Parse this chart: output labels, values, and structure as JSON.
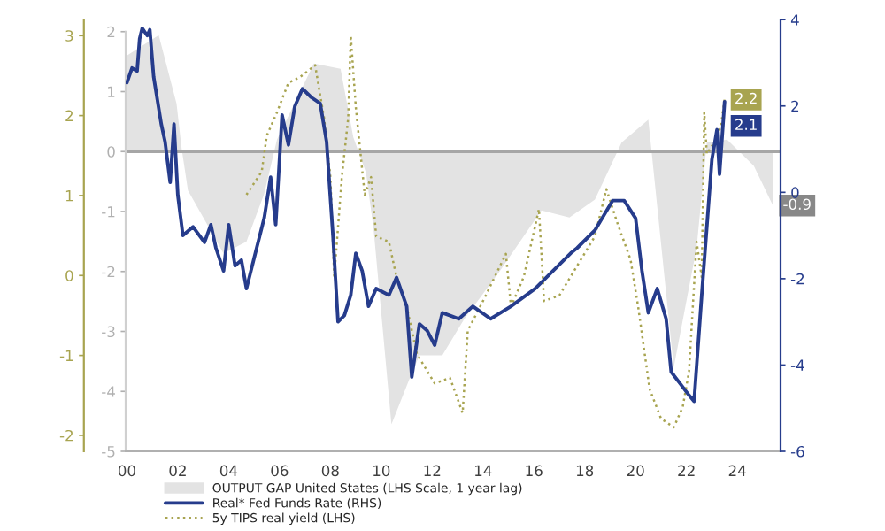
{
  "chart_data": {
    "type": "line",
    "xlim": [
      1999.95,
      2025.7
    ],
    "xticks": [
      {
        "value": 2000,
        "label": "00"
      },
      {
        "value": 2002,
        "label": "02"
      },
      {
        "value": 2004,
        "label": "04"
      },
      {
        "value": 2006,
        "label": "06"
      },
      {
        "value": 2008,
        "label": "08"
      },
      {
        "value": 2010,
        "label": "10"
      },
      {
        "value": 2012,
        "label": "12"
      },
      {
        "value": 2014,
        "label": "14"
      },
      {
        "value": 2016,
        "label": "16"
      },
      {
        "value": 2018,
        "label": "18"
      },
      {
        "value": 2020,
        "label": "20"
      },
      {
        "value": 2022,
        "label": "22"
      },
      {
        "value": 2024,
        "label": "24"
      }
    ],
    "ylim": [
      -5,
      2.2
    ],
    "yticks": [
      -5,
      -4,
      -3,
      -2,
      -1,
      0,
      1,
      2
    ],
    "y2lim": [
      -6,
      4
    ],
    "y2ticks": [
      -6,
      -4,
      -2,
      0,
      2,
      4
    ],
    "y3lim": [
      -2.2,
      3.2
    ],
    "y3ticks": [
      -2,
      -1,
      0,
      1,
      2,
      3
    ],
    "ref_lines": [
      {
        "axis": "y",
        "value": 0,
        "color": "#a6a6a6"
      }
    ],
    "legend": "bottom",
    "grid": false,
    "series": [
      {
        "name": "OUTPUT GAP United States (LHS Scale, 1 year lag)",
        "type": "area",
        "color": "#e3e3e3",
        "x": [
          2000.0,
          2001.25,
          2001.95,
          2002.15,
          2002.4,
          2003.0,
          2003.8,
          2004.7,
          2005.4,
          2005.9,
          2007.35,
          2008.4,
          2008.9,
          2009.4,
          2009.7,
          2010.4,
          2011.1,
          2011.5,
          2012.4,
          2013.25,
          2014.65,
          2016.3,
          2017.4,
          2018.4,
          2019.45,
          2020.5,
          2021.5,
          2022.4,
          2022.8,
          2023.6,
          2024.65,
          2025.4
        ],
        "values": [
          1.6,
          1.94,
          0.8,
          0.05,
          -0.65,
          -1.1,
          -1.7,
          -1.5,
          -0.7,
          0.2,
          1.47,
          1.38,
          0.24,
          -0.35,
          -1.3,
          -4.55,
          -3.8,
          -3.4,
          -3.4,
          -2.8,
          -2.0,
          -0.98,
          -1.1,
          -0.8,
          0.15,
          0.53,
          -3.6,
          -1.6,
          0.15,
          0.2,
          -0.24,
          -0.9
        ],
        "value_labels": [
          null,
          null,
          null,
          null,
          null,
          null,
          null,
          null,
          null,
          null,
          null,
          null,
          null,
          null,
          null,
          null,
          null,
          null,
          null,
          null,
          null,
          null,
          null,
          null,
          null,
          null,
          null,
          null,
          null,
          null,
          null,
          "-0.9"
        ]
      },
      {
        "name": "Real* Fed Funds Rate (RHS)",
        "axis": "y2",
        "color": "#263c8c",
        "line_style": "solid",
        "x": [
          2000.0,
          2000.2,
          2000.4,
          2000.5,
          2000.6,
          2000.8,
          2000.9,
          2001.05,
          2001.35,
          2001.5,
          2001.7,
          2001.85,
          2002.0,
          2002.2,
          2002.6,
          2003.05,
          2003.3,
          2003.5,
          2003.8,
          2004.0,
          2004.25,
          2004.5,
          2004.7,
          2005.1,
          2005.4,
          2005.65,
          2005.85,
          2006.1,
          2006.35,
          2006.6,
          2006.9,
          2007.25,
          2007.6,
          2007.85,
          2008.1,
          2008.3,
          2008.55,
          2008.8,
          2009.0,
          2009.25,
          2009.5,
          2009.8,
          2010.3,
          2010.6,
          2011.0,
          2011.2,
          2011.5,
          2011.8,
          2012.1,
          2012.4,
          2013.05,
          2013.6,
          2014.3,
          2015.1,
          2016.05,
          2016.75,
          2017.45,
          2017.7,
          2018.4,
          2019.1,
          2019.55,
          2020.0,
          2020.25,
          2020.5,
          2020.85,
          2021.2,
          2021.4,
          2021.75,
          2022.1,
          2022.3,
          2022.6,
          2023.0,
          2023.2,
          2023.3,
          2023.5
        ],
        "values": [
          2.54,
          2.88,
          2.81,
          3.56,
          3.8,
          3.63,
          3.77,
          2.68,
          1.58,
          1.17,
          0.23,
          1.58,
          -0.06,
          -1.0,
          -0.8,
          -1.16,
          -0.75,
          -1.29,
          -1.82,
          -0.75,
          -1.7,
          -1.57,
          -2.23,
          -1.29,
          -0.59,
          0.35,
          -0.75,
          1.79,
          1.1,
          1.99,
          2.4,
          2.2,
          2.06,
          1.17,
          -1.0,
          -3.0,
          -2.85,
          -2.38,
          -1.41,
          -1.82,
          -2.64,
          -2.23,
          -2.38,
          -1.97,
          -2.64,
          -4.28,
          -3.05,
          -3.2,
          -3.54,
          -2.79,
          -2.93,
          -2.64,
          -2.93,
          -2.64,
          -2.23,
          -1.82,
          -1.41,
          -1.29,
          -0.88,
          -0.19,
          -0.19,
          -0.6,
          -1.82,
          -2.79,
          -2.23,
          -2.93,
          -4.16,
          -4.43,
          -4.7,
          -4.84,
          -2.38,
          0.76,
          1.45,
          0.42,
          2.1
        ],
        "value_labels": [
          null,
          null,
          null,
          null,
          null,
          null,
          null,
          null,
          null,
          null,
          null,
          null,
          null,
          null,
          null,
          null,
          null,
          null,
          null,
          null,
          null,
          null,
          null,
          null,
          null,
          null,
          null,
          null,
          null,
          null,
          null,
          null,
          null,
          null,
          null,
          null,
          null,
          null,
          null,
          null,
          null,
          null,
          null,
          null,
          null,
          null,
          null,
          null,
          null,
          null,
          null,
          null,
          null,
          null,
          null,
          null,
          null,
          null,
          null,
          null,
          null,
          null,
          null,
          null,
          null,
          null,
          null,
          null,
          null,
          null,
          null,
          null,
          null,
          null,
          "2.1"
        ]
      },
      {
        "name": "5y TIPS real yield (LHS)",
        "axis": "y3",
        "color": "#a8a450",
        "line_style": "dotted",
        "x": [
          2004.7,
          2005.3,
          2005.5,
          2005.9,
          2006.35,
          2006.8,
          2007.4,
          2007.75,
          2008.0,
          2008.15,
          2008.45,
          2008.7,
          2008.8,
          2009.0,
          2009.35,
          2009.6,
          2009.8,
          2010.3,
          2010.6,
          2011.0,
          2011.4,
          2012.1,
          2012.7,
          2013.2,
          2013.4,
          2014.0,
          2014.9,
          2015.1,
          2015.6,
          2016.2,
          2016.4,
          2017.0,
          2017.7,
          2018.4,
          2018.85,
          2019.3,
          2019.8,
          2020.1,
          2020.55,
          2021.0,
          2021.5,
          2021.85,
          2022.1,
          2022.4,
          2022.6,
          2022.7,
          2022.8,
          2023.1,
          2023.35,
          2023.5
        ],
        "values": [
          1.01,
          1.3,
          1.75,
          2.04,
          2.41,
          2.48,
          2.63,
          1.97,
          1.23,
          -0.02,
          1.23,
          1.97,
          3.0,
          2.1,
          1.01,
          1.23,
          0.49,
          0.42,
          -0.02,
          -0.39,
          -0.98,
          -1.35,
          -1.28,
          -1.72,
          -0.69,
          -0.32,
          0.27,
          -0.39,
          -0.02,
          0.83,
          -0.32,
          -0.25,
          0.12,
          0.49,
          1.08,
          0.64,
          0.2,
          -0.39,
          -1.42,
          -1.79,
          -1.9,
          -1.65,
          -1.2,
          0.42,
          -0.02,
          2.04,
          1.52,
          1.67,
          1.86,
          2.2
        ],
        "value_labels": [
          null,
          null,
          null,
          null,
          null,
          null,
          null,
          null,
          null,
          null,
          null,
          null,
          null,
          null,
          null,
          null,
          null,
          null,
          null,
          null,
          null,
          null,
          null,
          null,
          null,
          null,
          null,
          null,
          null,
          null,
          null,
          null,
          null,
          null,
          null,
          null,
          null,
          null,
          null,
          null,
          null,
          null,
          null,
          null,
          null,
          null,
          null,
          null,
          null,
          "2.2"
        ]
      }
    ]
  }
}
